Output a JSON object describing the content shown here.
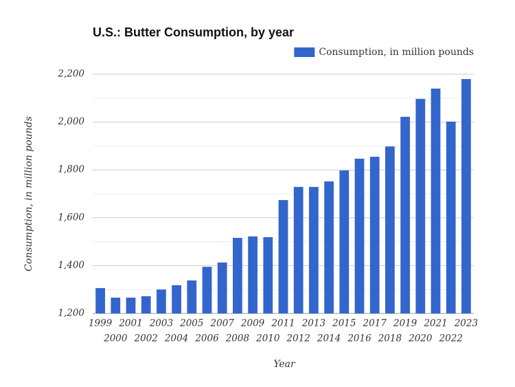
{
  "chart_data": {
    "type": "bar",
    "title": "U.S.: Butter Consumption, by year",
    "x_label": "Year",
    "y_label": "Consumption, in million pounds",
    "categories": [
      "1999",
      "2000",
      "2001",
      "2002",
      "2003",
      "2004",
      "2005",
      "2006",
      "2007",
      "2008",
      "2009",
      "2010",
      "2011",
      "2012",
      "2013",
      "2014",
      "2015",
      "2016",
      "2017",
      "2018",
      "2019",
      "2020",
      "2021",
      "2022",
      "2023"
    ],
    "series": [
      {
        "name": "Consumption, in million pounds",
        "color": "#3366cc",
        "values": [
          1306,
          1266,
          1266,
          1272,
          1300,
          1318,
          1338,
          1395,
          1413,
          1516,
          1522,
          1519,
          1674,
          1729,
          1729,
          1752,
          1798,
          1847,
          1855,
          1898,
          2022,
          2097,
          2140,
          2002,
          2180
        ]
      }
    ],
    "ylim": [
      1200,
      2200
    ],
    "yticks": [
      {
        "value": 1200,
        "label": "1,200"
      },
      {
        "value": 1400,
        "label": "1,400"
      },
      {
        "value": 1600,
        "label": "1,600"
      },
      {
        "value": 1800,
        "label": "1,800"
      },
      {
        "value": 2000,
        "label": "2,000"
      },
      {
        "value": 2200,
        "label": "2,200"
      }
    ],
    "minor_yticks": [
      1300,
      1500,
      1700,
      1900,
      2100
    ],
    "grid": true,
    "legend": "top-right"
  }
}
